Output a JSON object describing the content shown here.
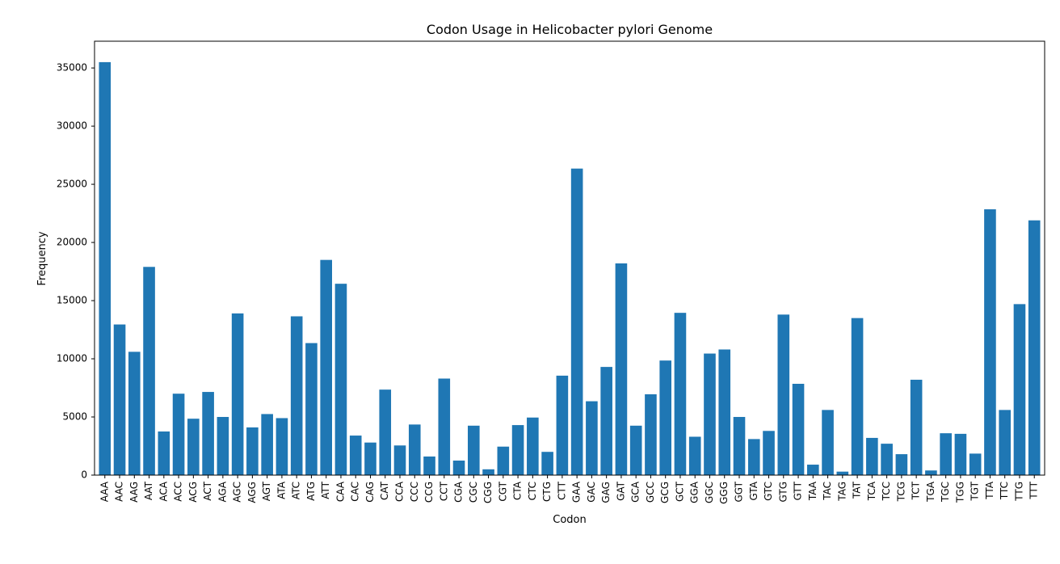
{
  "chart_data": {
    "type": "bar",
    "title": "Codon Usage in Helicobacter pylori Genome",
    "xlabel": "Codon",
    "ylabel": "Frequency",
    "ylim": [
      0,
      37300
    ],
    "yticks": [
      0,
      5000,
      10000,
      15000,
      20000,
      25000,
      30000,
      35000
    ],
    "grid": false,
    "bar_color": "#1f77b4",
    "categories": [
      "AAA",
      "AAC",
      "AAG",
      "AAT",
      "ACA",
      "ACC",
      "ACG",
      "ACT",
      "AGA",
      "AGC",
      "AGG",
      "AGT",
      "ATA",
      "ATC",
      "ATG",
      "ATT",
      "CAA",
      "CAC",
      "CAG",
      "CAT",
      "CCA",
      "CCC",
      "CCG",
      "CCT",
      "CGA",
      "CGC",
      "CGG",
      "CGT",
      "CTA",
      "CTC",
      "CTG",
      "CTT",
      "GAA",
      "GAC",
      "GAG",
      "GAT",
      "GCA",
      "GCC",
      "GCG",
      "GCT",
      "GGA",
      "GGC",
      "GGG",
      "GGT",
      "GTA",
      "GTC",
      "GTG",
      "GTT",
      "TAA",
      "TAC",
      "TAG",
      "TAT",
      "TCA",
      "TCC",
      "TCG",
      "TCT",
      "TGA",
      "TGC",
      "TGG",
      "TGT",
      "TTA",
      "TTC",
      "TTG",
      "TTT"
    ],
    "values": [
      35500,
      12950,
      10600,
      17900,
      3750,
      7000,
      4850,
      7150,
      5000,
      13900,
      4100,
      5250,
      4900,
      13650,
      11350,
      18500,
      16450,
      3400,
      2800,
      7350,
      2550,
      4350,
      1600,
      8300,
      1250,
      4250,
      500,
      2450,
      4300,
      4950,
      2000,
      8550,
      26350,
      6350,
      9300,
      18200,
      4250,
      6950,
      9850,
      13950,
      3300,
      10450,
      10800,
      5000,
      3100,
      3800,
      13800,
      7850,
      900,
      5600,
      300,
      13500,
      3200,
      2700,
      1800,
      8200,
      400,
      3600,
      3550,
      1850,
      22850,
      5600,
      14700,
      21900
    ]
  }
}
